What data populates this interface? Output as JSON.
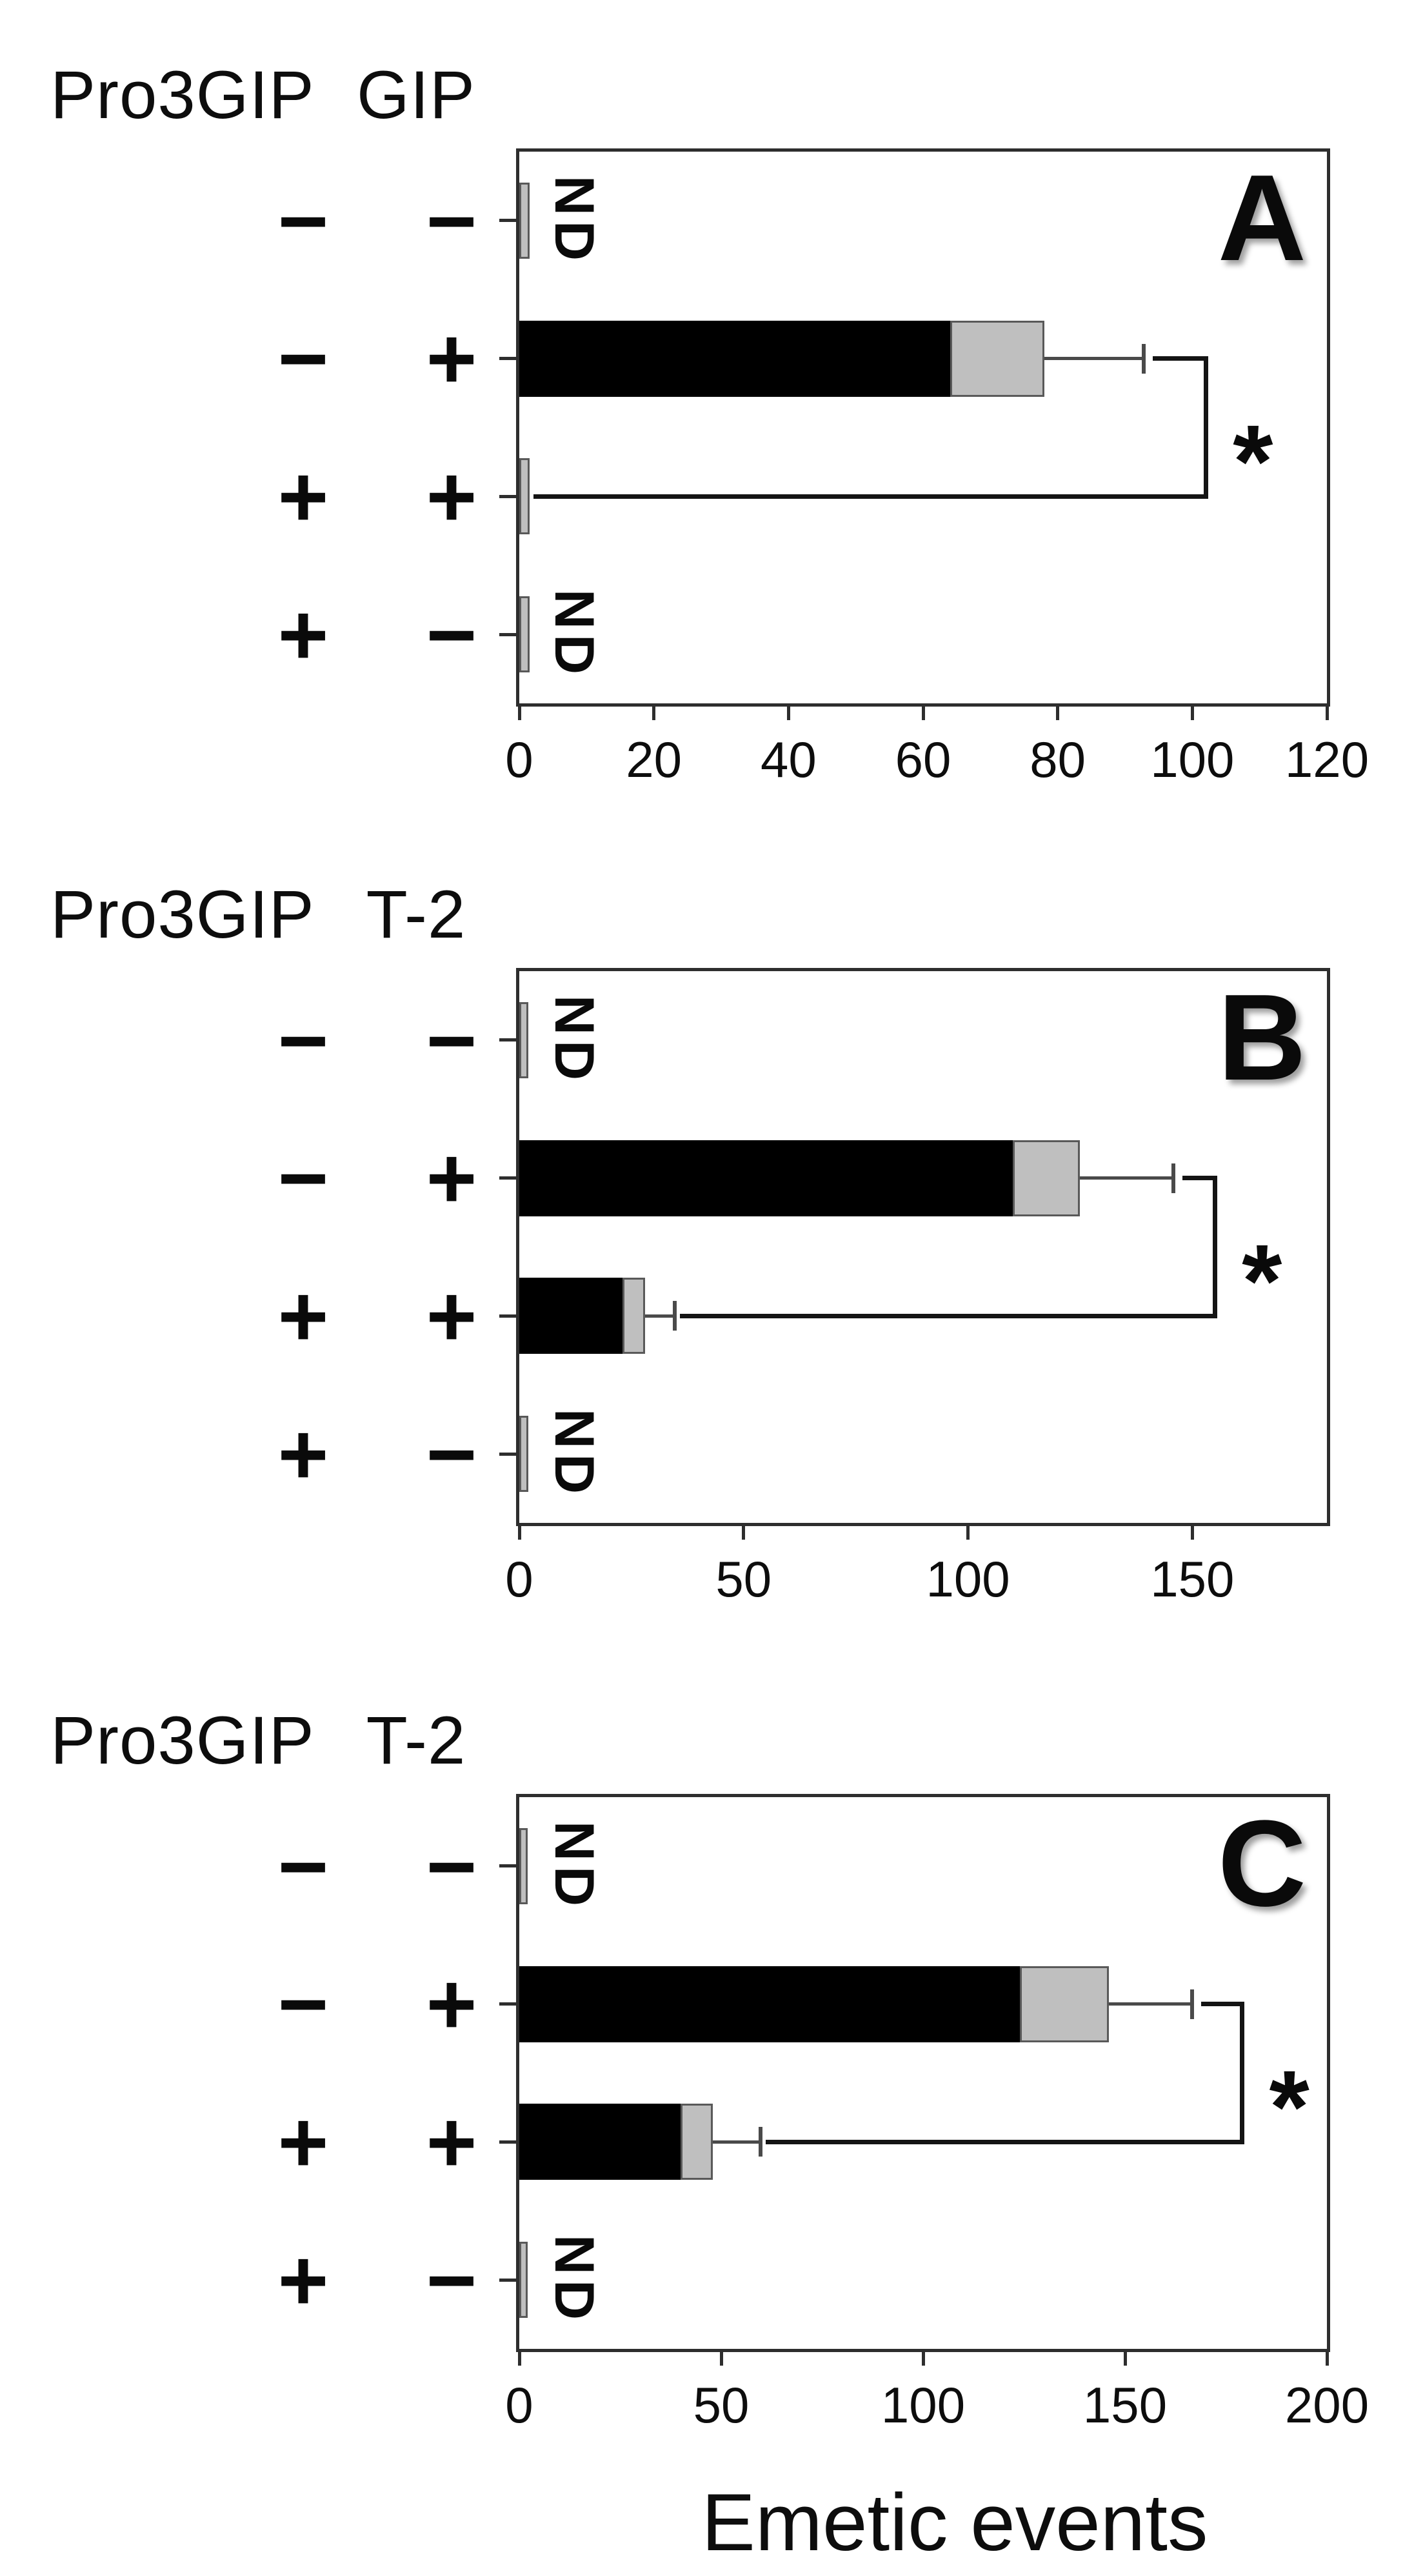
{
  "figure": {
    "xlabel": "Emetic events",
    "nd_label": "ND",
    "significance_marker": "*",
    "colors": {
      "black_bar": "#000000",
      "gray_bar": "#bfbfbf",
      "gray_bar_border": "#595959",
      "box_border": "#2e2e2e",
      "error_bar": "#4a4a4a",
      "text": "#0d0d0d"
    }
  },
  "chart_data": [
    {
      "type": "bar",
      "panel": "A",
      "orientation": "horizontal",
      "stack_legend": [
        "black segment",
        "gray segment"
      ],
      "col_headers": [
        "Pro3GIP",
        "GIP"
      ],
      "xlabel": "Emetic events",
      "xticks": [
        0,
        20,
        40,
        60,
        80,
        100,
        120
      ],
      "xmax": 120,
      "grid": false,
      "rows": [
        {
          "pro3gip": "-",
          "agent": "-",
          "nd": true,
          "bar": 1.5,
          "black": 0,
          "gray": 0,
          "err_to": null
        },
        {
          "pro3gip": "-",
          "agent": "+",
          "nd": false,
          "bar": 78,
          "black": 64,
          "gray": 14,
          "err_to": 93
        },
        {
          "pro3gip": "+",
          "agent": "+",
          "nd": false,
          "bar": 1.5,
          "black": 0,
          "gray": 1.5,
          "err_to": null
        },
        {
          "pro3gip": "+",
          "agent": "-",
          "nd": true,
          "bar": 1.5,
          "black": 0,
          "gray": 0,
          "err_to": null
        }
      ],
      "bracket": {
        "top_row": 1,
        "bottom_row": 2,
        "x": 102,
        "label": "*"
      }
    },
    {
      "type": "bar",
      "panel": "B",
      "orientation": "horizontal",
      "stack_legend": [
        "black segment",
        "gray segment"
      ],
      "col_headers": [
        "Pro3GIP",
        "T-2"
      ],
      "xlabel": "Emetic events",
      "xticks": [
        0,
        50,
        100,
        150
      ],
      "xmax": 180,
      "grid": false,
      "rows": [
        {
          "pro3gip": "-",
          "agent": "-",
          "nd": true,
          "bar": 2,
          "black": 0,
          "gray": 0,
          "err_to": null
        },
        {
          "pro3gip": "-",
          "agent": "+",
          "nd": false,
          "bar": 125,
          "black": 110,
          "gray": 15,
          "err_to": 146
        },
        {
          "pro3gip": "+",
          "agent": "+",
          "nd": false,
          "bar": 28,
          "black": 23,
          "gray": 5,
          "err_to": 35
        },
        {
          "pro3gip": "+",
          "agent": "-",
          "nd": true,
          "bar": 2,
          "black": 0,
          "gray": 0,
          "err_to": null
        }
      ],
      "bracket": {
        "top_row": 1,
        "bottom_row": 2,
        "x": 155,
        "label": "*"
      }
    },
    {
      "type": "bar",
      "panel": "C",
      "orientation": "horizontal",
      "stack_legend": [
        "black segment",
        "gray segment"
      ],
      "col_headers": [
        "Pro3GIP",
        "T-2"
      ],
      "xlabel": "Emetic events",
      "xticks": [
        0,
        50,
        100,
        150,
        200
      ],
      "xmax": 200,
      "grid": false,
      "rows": [
        {
          "pro3gip": "-",
          "agent": "-",
          "nd": true,
          "bar": 2,
          "black": 0,
          "gray": 0,
          "err_to": null
        },
        {
          "pro3gip": "-",
          "agent": "+",
          "nd": false,
          "bar": 146,
          "black": 124,
          "gray": 22,
          "err_to": 167
        },
        {
          "pro3gip": "+",
          "agent": "+",
          "nd": false,
          "bar": 48,
          "black": 40,
          "gray": 8,
          "err_to": 60
        },
        {
          "pro3gip": "+",
          "agent": "-",
          "nd": true,
          "bar": 2,
          "black": 0,
          "gray": 0,
          "err_to": null
        }
      ],
      "bracket": {
        "top_row": 1,
        "bottom_row": 2,
        "x": 179,
        "label": "*"
      }
    }
  ]
}
